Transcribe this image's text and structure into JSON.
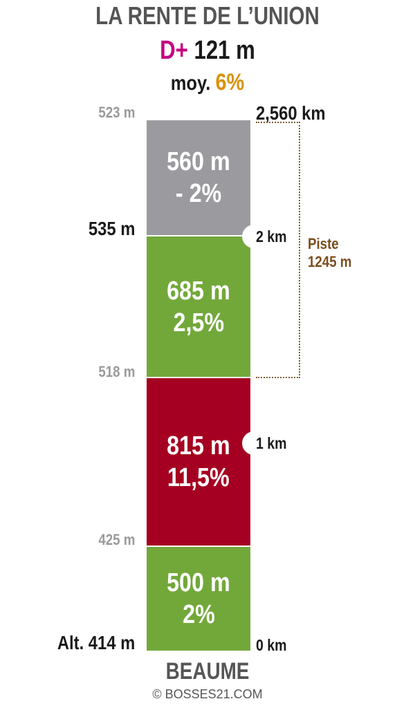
{
  "title": "LA RENTE DE L’UNION",
  "elevation_gain": {
    "label": "D+",
    "value": "121 m"
  },
  "average": {
    "label": "moy.",
    "value": "6%"
  },
  "segments": [
    {
      "length": "560 m",
      "grade": "- 2%",
      "color": "#9b9a9e"
    },
    {
      "length": "685 m",
      "grade": "2,5%",
      "color": "#72a83a"
    },
    {
      "length": "815 m",
      "grade": "11,5%",
      "color": "#a50021"
    },
    {
      "length": "500 m",
      "grade": "2%",
      "color": "#72a83a"
    }
  ],
  "altitudes": [
    "523 m",
    "535 m",
    "518 m",
    "425 m",
    "Alt. 414 m"
  ],
  "distances": [
    "2,560 km",
    "2 km",
    "1 km",
    "0 km"
  ],
  "piste": {
    "line1": "Piste",
    "line2": "1245 m"
  },
  "start_town": "BEAUME",
  "copyright": "© BOSSES21.COM"
}
